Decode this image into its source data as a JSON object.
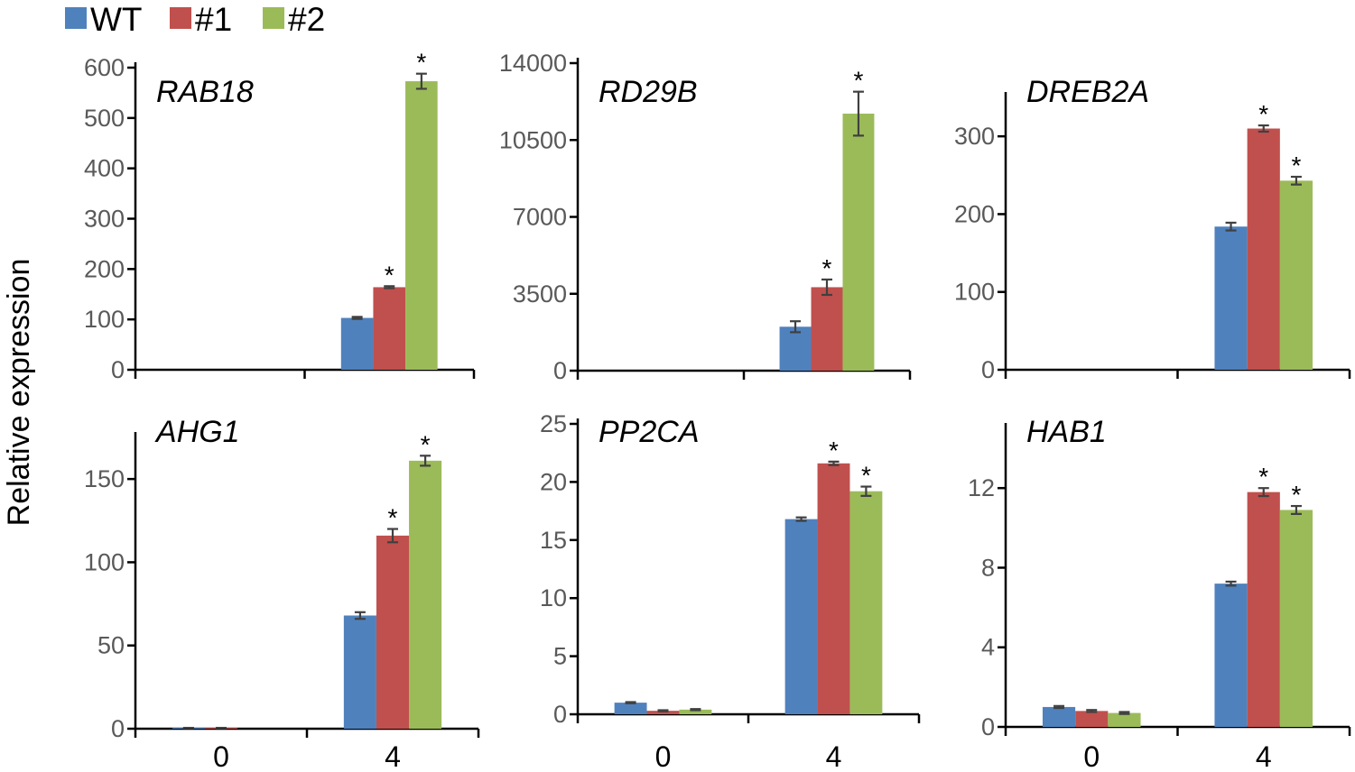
{
  "colors": {
    "WT": "#4f81bd",
    "#1": "#c0504d",
    "#2": "#9bbb59"
  },
  "chart_data": {
    "type": "bar",
    "ylabel": "Relative expression",
    "legend": [
      "WT",
      "#1",
      "#2"
    ],
    "categories": [
      "0",
      "4"
    ],
    "panels": [
      {
        "title": "RAB18",
        "ylim": [
          0,
          600
        ],
        "yticks": [
          "0",
          "100",
          "200",
          "300",
          "400",
          "500",
          "600"
        ],
        "series": [
          {
            "name": "WT",
            "values": [
              0,
              103
            ],
            "errors": [
              0,
              2
            ]
          },
          {
            "name": "#1",
            "values": [
              0,
              164
            ],
            "errors": [
              0,
              2
            ]
          },
          {
            "name": "#2",
            "values": [
              0,
              573
            ],
            "errors": [
              0,
              15
            ]
          }
        ],
        "significance": [
          [
            "",
            ""
          ],
          [
            "",
            "*"
          ],
          [
            "",
            "*"
          ]
        ]
      },
      {
        "title": "RD29B",
        "ylim": [
          0,
          14000
        ],
        "yticks": [
          "0",
          "3500",
          "7000",
          "10500",
          "14000"
        ],
        "series": [
          {
            "name": "WT",
            "values": [
              0,
              2000
            ],
            "errors": [
              0,
              250
            ]
          },
          {
            "name": "#1",
            "values": [
              0,
              3800
            ],
            "errors": [
              0,
              350
            ]
          },
          {
            "name": "#2",
            "values": [
              0,
              11700
            ],
            "errors": [
              0,
              1000
            ]
          }
        ],
        "significance": [
          [
            "",
            ""
          ],
          [
            "",
            "*"
          ],
          [
            "",
            "*"
          ]
        ]
      },
      {
        "title": "DREB2A",
        "ylim": [
          0,
          350
        ],
        "yticks": [
          "0",
          "100",
          "200",
          "300"
        ],
        "series": [
          {
            "name": "WT",
            "values": [
              0,
              184
            ],
            "errors": [
              0,
              5
            ]
          },
          {
            "name": "#1",
            "values": [
              0,
              310
            ],
            "errors": [
              0,
              4
            ]
          },
          {
            "name": "#2",
            "values": [
              0,
              243
            ],
            "errors": [
              0,
              5
            ]
          }
        ],
        "significance": [
          [
            "",
            ""
          ],
          [
            "",
            "*"
          ],
          [
            "",
            "*"
          ]
        ]
      },
      {
        "title": "AHG1",
        "ylim": [
          0,
          175
        ],
        "yticks": [
          "0",
          "50",
          "100",
          "150"
        ],
        "series": [
          {
            "name": "WT",
            "values": [
              0.5,
              68
            ],
            "errors": [
              0,
              2
            ]
          },
          {
            "name": "#1",
            "values": [
              0.5,
              116
            ],
            "errors": [
              0,
              4
            ]
          },
          {
            "name": "#2",
            "values": [
              0,
              161
            ],
            "errors": [
              0,
              3
            ]
          }
        ],
        "significance": [
          [
            "",
            ""
          ],
          [
            "",
            "*"
          ],
          [
            "",
            "*"
          ]
        ]
      },
      {
        "title": "PP2CA",
        "ylim": [
          0,
          25
        ],
        "yticks": [
          "0",
          "5",
          "10",
          "15",
          "20",
          "25"
        ],
        "series": [
          {
            "name": "WT",
            "values": [
              1.0,
              16.8
            ],
            "errors": [
              0.05,
              0.15
            ]
          },
          {
            "name": "#1",
            "values": [
              0.3,
              21.6
            ],
            "errors": [
              0.05,
              0.15
            ]
          },
          {
            "name": "#2",
            "values": [
              0.4,
              19.2
            ],
            "errors": [
              0.05,
              0.4
            ]
          }
        ],
        "significance": [
          [
            "",
            ""
          ],
          [
            "",
            "*"
          ],
          [
            "",
            "*"
          ]
        ]
      },
      {
        "title": "HAB1",
        "ylim": [
          0,
          15
        ],
        "yticks": [
          "0",
          "4",
          "8",
          "12"
        ],
        "series": [
          {
            "name": "WT",
            "values": [
              1.0,
              7.2
            ],
            "errors": [
              0.05,
              0.1
            ]
          },
          {
            "name": "#1",
            "values": [
              0.8,
              11.8
            ],
            "errors": [
              0.05,
              0.2
            ]
          },
          {
            "name": "#2",
            "values": [
              0.7,
              10.9
            ],
            "errors": [
              0.05,
              0.2
            ]
          }
        ],
        "significance": [
          [
            "",
            ""
          ],
          [
            "",
            "*"
          ],
          [
            "",
            "*"
          ]
        ]
      }
    ]
  }
}
